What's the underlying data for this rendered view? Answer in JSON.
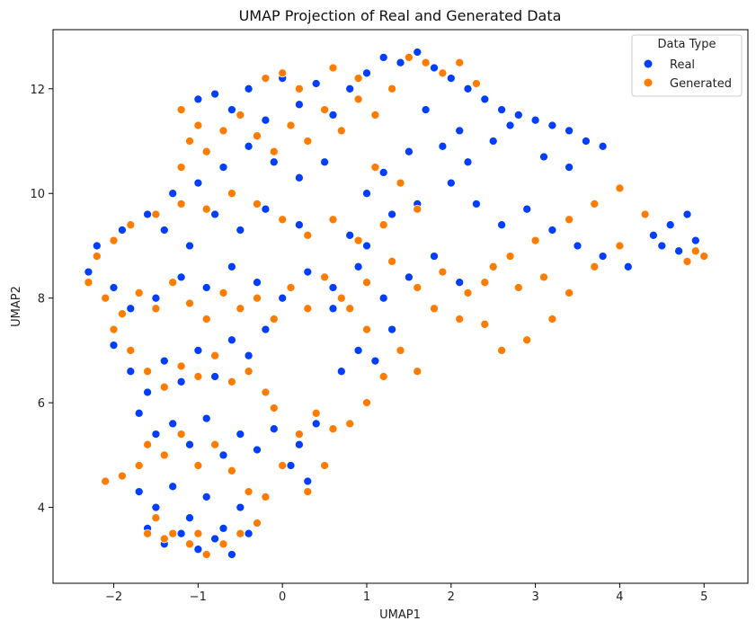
{
  "chart_data": {
    "type": "scatter",
    "title": "UMAP Projection of Real and Generated Data",
    "xlabel": "UMAP1",
    "ylabel": "UMAP2",
    "xlim": [
      -2.72,
      5.52
    ],
    "ylim": [
      2.55,
      13.13
    ],
    "xticks": [
      -2,
      -1,
      0,
      1,
      2,
      3,
      4,
      5
    ],
    "yticks": [
      4,
      6,
      8,
      10,
      12
    ],
    "grid": false,
    "legend": {
      "title": "Data Type",
      "placement": "top-right",
      "entries": [
        {
          "name": "Real",
          "color": "#023eff"
        },
        {
          "name": "Generated",
          "color": "#ff7c00"
        }
      ]
    },
    "series": [
      {
        "name": "Real",
        "color": "#023eff",
        "points": [
          [
            -1.0,
            11.8
          ],
          [
            -0.8,
            11.9
          ],
          [
            -0.6,
            11.6
          ],
          [
            -0.4,
            12.0
          ],
          [
            -0.2,
            11.4
          ],
          [
            0.0,
            12.2
          ],
          [
            0.2,
            11.7
          ],
          [
            0.4,
            12.1
          ],
          [
            0.6,
            11.5
          ],
          [
            0.8,
            12.0
          ],
          [
            1.0,
            12.3
          ],
          [
            1.2,
            12.6
          ],
          [
            1.4,
            12.5
          ],
          [
            1.6,
            12.7
          ],
          [
            1.8,
            12.4
          ],
          [
            2.0,
            12.2
          ],
          [
            2.2,
            12.0
          ],
          [
            2.4,
            11.8
          ],
          [
            2.6,
            11.6
          ],
          [
            2.8,
            11.5
          ],
          [
            3.0,
            11.4
          ],
          [
            3.2,
            11.3
          ],
          [
            3.4,
            11.2
          ],
          [
            3.6,
            11.0
          ],
          [
            3.8,
            10.9
          ],
          [
            2.5,
            11.0
          ],
          [
            2.2,
            10.6
          ],
          [
            1.9,
            10.9
          ],
          [
            1.5,
            10.8
          ],
          [
            1.2,
            10.4
          ],
          [
            1.0,
            10.0
          ],
          [
            1.3,
            9.6
          ],
          [
            1.6,
            9.8
          ],
          [
            2.0,
            10.2
          ],
          [
            2.3,
            9.8
          ],
          [
            2.6,
            9.4
          ],
          [
            2.9,
            9.7
          ],
          [
            3.2,
            9.3
          ],
          [
            3.5,
            9.0
          ],
          [
            3.8,
            8.8
          ],
          [
            4.1,
            8.6
          ],
          [
            4.4,
            9.2
          ],
          [
            4.6,
            9.4
          ],
          [
            4.8,
            9.6
          ],
          [
            4.9,
            9.1
          ],
          [
            4.7,
            8.9
          ],
          [
            4.5,
            9.0
          ],
          [
            0.5,
            10.6
          ],
          [
            0.2,
            10.3
          ],
          [
            -0.1,
            10.6
          ],
          [
            -0.4,
            10.9
          ],
          [
            -0.7,
            10.5
          ],
          [
            -1.0,
            10.2
          ],
          [
            -1.3,
            10.0
          ],
          [
            -1.6,
            9.6
          ],
          [
            -1.9,
            9.3
          ],
          [
            -2.2,
            9.0
          ],
          [
            -2.3,
            8.5
          ],
          [
            -2.0,
            8.2
          ],
          [
            -1.8,
            7.8
          ],
          [
            -1.5,
            8.0
          ],
          [
            -1.2,
            8.4
          ],
          [
            -0.9,
            8.2
          ],
          [
            -0.6,
            8.6
          ],
          [
            -0.3,
            8.3
          ],
          [
            0.0,
            8.0
          ],
          [
            0.3,
            8.5
          ],
          [
            0.6,
            8.2
          ],
          [
            0.9,
            8.6
          ],
          [
            1.2,
            8.0
          ],
          [
            1.5,
            8.4
          ],
          [
            1.8,
            8.8
          ],
          [
            2.1,
            8.3
          ],
          [
            -2.0,
            7.1
          ],
          [
            -1.8,
            6.6
          ],
          [
            -1.6,
            6.2
          ],
          [
            -1.4,
            6.8
          ],
          [
            -1.2,
            6.4
          ],
          [
            -1.0,
            7.0
          ],
          [
            -0.8,
            6.5
          ],
          [
            -0.6,
            7.2
          ],
          [
            -0.4,
            6.9
          ],
          [
            -0.2,
            7.4
          ],
          [
            -1.7,
            5.8
          ],
          [
            -1.5,
            5.4
          ],
          [
            -1.3,
            5.6
          ],
          [
            -1.1,
            5.2
          ],
          [
            -0.9,
            5.7
          ],
          [
            -0.7,
            5.0
          ],
          [
            -0.5,
            5.4
          ],
          [
            -0.3,
            5.1
          ],
          [
            -1.9,
            4.6
          ],
          [
            -1.7,
            4.3
          ],
          [
            -1.5,
            4.0
          ],
          [
            -1.3,
            4.4
          ],
          [
            -1.1,
            3.8
          ],
          [
            -0.9,
            4.2
          ],
          [
            -0.7,
            3.6
          ],
          [
            -0.5,
            4.0
          ],
          [
            -0.3,
            3.7
          ],
          [
            -1.6,
            3.6
          ],
          [
            -1.4,
            3.3
          ],
          [
            -1.2,
            3.5
          ],
          [
            -1.0,
            3.2
          ],
          [
            -0.8,
            3.4
          ],
          [
            -0.6,
            3.1
          ],
          [
            -0.4,
            3.5
          ],
          [
            0.2,
            5.2
          ],
          [
            0.4,
            5.6
          ],
          [
            0.1,
            4.8
          ],
          [
            0.3,
            4.5
          ],
          [
            -0.1,
            5.5
          ],
          [
            0.7,
            6.6
          ],
          [
            0.9,
            7.0
          ],
          [
            1.1,
            6.8
          ],
          [
            1.3,
            7.4
          ],
          [
            0.6,
            7.8
          ],
          [
            0.8,
            9.2
          ],
          [
            1.0,
            9.0
          ],
          [
            0.2,
            9.4
          ],
          [
            -0.2,
            9.7
          ],
          [
            -0.5,
            9.3
          ],
          [
            -0.8,
            9.6
          ],
          [
            -1.1,
            9.0
          ],
          [
            -1.4,
            9.3
          ],
          [
            1.7,
            11.6
          ],
          [
            2.1,
            11.2
          ],
          [
            2.7,
            11.3
          ],
          [
            3.1,
            10.7
          ],
          [
            3.4,
            10.5
          ]
        ]
      },
      {
        "name": "Generated",
        "color": "#ff7c00",
        "points": [
          [
            -1.2,
            11.6
          ],
          [
            -1.0,
            11.3
          ],
          [
            -1.1,
            11.0
          ],
          [
            -0.9,
            10.8
          ],
          [
            -1.2,
            10.5
          ],
          [
            -0.7,
            11.2
          ],
          [
            -0.5,
            11.5
          ],
          [
            -0.3,
            11.1
          ],
          [
            -0.1,
            10.8
          ],
          [
            0.1,
            11.3
          ],
          [
            0.3,
            11.0
          ],
          [
            0.5,
            11.6
          ],
          [
            0.7,
            11.2
          ],
          [
            0.9,
            11.8
          ],
          [
            1.1,
            11.5
          ],
          [
            1.3,
            12.0
          ],
          [
            1.5,
            12.6
          ],
          [
            1.7,
            12.5
          ],
          [
            1.9,
            12.3
          ],
          [
            2.1,
            12.5
          ],
          [
            2.3,
            12.1
          ],
          [
            0.0,
            12.3
          ],
          [
            0.2,
            12.0
          ],
          [
            -0.2,
            12.2
          ],
          [
            0.6,
            12.4
          ],
          [
            0.9,
            12.2
          ],
          [
            1.1,
            10.5
          ],
          [
            1.4,
            10.2
          ],
          [
            1.6,
            9.7
          ],
          [
            1.2,
            9.4
          ],
          [
            0.9,
            9.1
          ],
          [
            0.6,
            9.5
          ],
          [
            0.3,
            9.2
          ],
          [
            0.0,
            9.5
          ],
          [
            -0.3,
            9.8
          ],
          [
            -0.6,
            10.0
          ],
          [
            -0.9,
            9.7
          ],
          [
            -1.2,
            9.8
          ],
          [
            -1.5,
            9.6
          ],
          [
            -1.8,
            9.4
          ],
          [
            -2.0,
            9.1
          ],
          [
            -2.2,
            8.8
          ],
          [
            -2.3,
            8.3
          ],
          [
            -2.1,
            8.0
          ],
          [
            -1.9,
            7.7
          ],
          [
            -1.7,
            8.1
          ],
          [
            -1.5,
            7.8
          ],
          [
            -1.3,
            8.3
          ],
          [
            -1.1,
            7.9
          ],
          [
            -0.9,
            7.6
          ],
          [
            -0.7,
            8.1
          ],
          [
            -0.5,
            7.8
          ],
          [
            -0.3,
            8.0
          ],
          [
            -0.1,
            7.6
          ],
          [
            0.1,
            8.2
          ],
          [
            0.3,
            7.8
          ],
          [
            0.5,
            8.4
          ],
          [
            0.7,
            8.0
          ],
          [
            1.0,
            8.3
          ],
          [
            1.3,
            8.7
          ],
          [
            1.6,
            8.2
          ],
          [
            1.9,
            8.5
          ],
          [
            2.2,
            8.1
          ],
          [
            2.5,
            8.6
          ],
          [
            2.8,
            8.2
          ],
          [
            3.1,
            8.4
          ],
          [
            3.4,
            8.1
          ],
          [
            3.7,
            8.6
          ],
          [
            4.0,
            9.0
          ],
          [
            4.3,
            9.6
          ],
          [
            4.0,
            10.1
          ],
          [
            3.7,
            9.8
          ],
          [
            3.4,
            9.5
          ],
          [
            3.0,
            9.1
          ],
          [
            2.7,
            8.8
          ],
          [
            2.4,
            8.3
          ],
          [
            2.6,
            7.0
          ],
          [
            2.9,
            7.2
          ],
          [
            3.2,
            7.6
          ],
          [
            2.4,
            7.5
          ],
          [
            4.9,
            8.9
          ],
          [
            5.0,
            8.8
          ],
          [
            4.8,
            8.7
          ],
          [
            -2.0,
            7.4
          ],
          [
            -1.8,
            7.0
          ],
          [
            -1.6,
            6.6
          ],
          [
            -1.4,
            6.3
          ],
          [
            -1.2,
            6.7
          ],
          [
            -1.0,
            6.5
          ],
          [
            -0.8,
            6.9
          ],
          [
            -0.6,
            6.4
          ],
          [
            -0.4,
            6.6
          ],
          [
            -0.2,
            6.2
          ],
          [
            -1.6,
            5.2
          ],
          [
            -1.4,
            5.0
          ],
          [
            -1.2,
            5.4
          ],
          [
            -1.0,
            4.8
          ],
          [
            -0.8,
            5.2
          ],
          [
            -0.6,
            4.7
          ],
          [
            -1.9,
            4.6
          ],
          [
            -2.1,
            4.5
          ],
          [
            -1.7,
            4.8
          ],
          [
            -1.5,
            3.8
          ],
          [
            -1.3,
            3.5
          ],
          [
            -1.1,
            3.3
          ],
          [
            -0.9,
            3.1
          ],
          [
            -0.7,
            3.3
          ],
          [
            -0.5,
            3.5
          ],
          [
            -0.3,
            3.7
          ],
          [
            -1.6,
            3.5
          ],
          [
            -1.4,
            3.4
          ],
          [
            -1.0,
            3.5
          ],
          [
            -0.4,
            4.3
          ],
          [
            -0.2,
            4.2
          ],
          [
            0.0,
            4.8
          ],
          [
            0.2,
            5.4
          ],
          [
            0.4,
            5.8
          ],
          [
            0.6,
            5.5
          ],
          [
            0.8,
            5.6
          ],
          [
            1.0,
            6.0
          ],
          [
            1.2,
            6.5
          ],
          [
            1.4,
            7.0
          ],
          [
            1.6,
            6.6
          ],
          [
            1.0,
            7.4
          ],
          [
            0.8,
            7.8
          ],
          [
            -0.1,
            5.9
          ],
          [
            0.3,
            4.3
          ],
          [
            0.5,
            4.8
          ],
          [
            1.8,
            7.8
          ],
          [
            2.1,
            7.6
          ]
        ]
      }
    ]
  }
}
